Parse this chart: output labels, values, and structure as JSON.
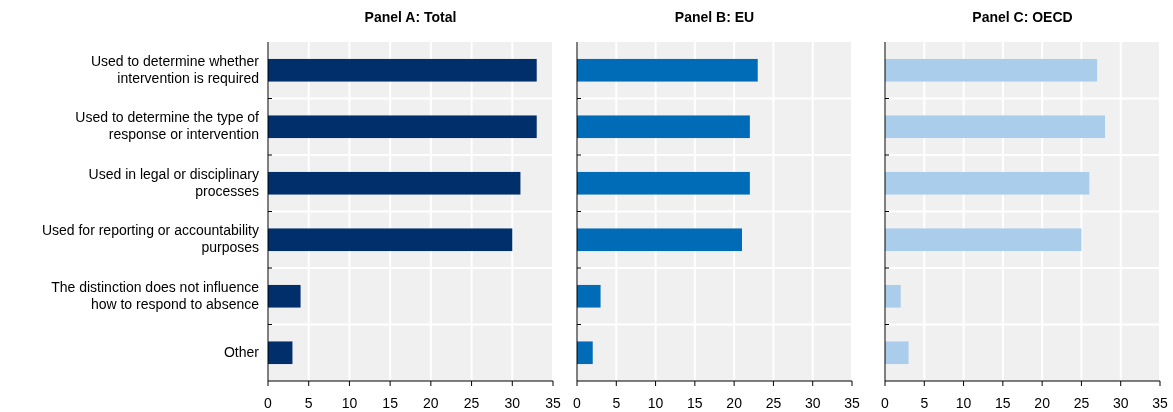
{
  "chart_data": [
    {
      "type": "bar",
      "orientation": "horizontal",
      "title": "Panel A: Total",
      "categories": [
        "Used to determine whether intervention is required",
        "Used to determine the type of response or intervention",
        "Used in legal or disciplinary processes",
        "Used for reporting or accountability purposes",
        "The distinction does not influence how to respond to absence",
        "Other"
      ],
      "values": [
        33,
        33,
        31,
        30,
        4,
        3
      ],
      "color": "#002f6c",
      "xlim": [
        0,
        35
      ],
      "xticks": [
        0,
        5,
        10,
        15,
        20,
        25,
        30,
        35
      ],
      "grid": true
    },
    {
      "type": "bar",
      "orientation": "horizontal",
      "title": "Panel B: EU",
      "categories": [
        null,
        null,
        null,
        null,
        null,
        null
      ],
      "values": [
        23,
        22,
        22,
        21,
        3,
        2
      ],
      "color": "#006bb6",
      "xlim": [
        0,
        35
      ],
      "xticks": [
        0,
        5,
        10,
        15,
        20,
        25,
        30,
        35
      ],
      "grid": true,
      "tick_labels": "x"
    },
    {
      "type": "bar",
      "orientation": "horizontal",
      "title": "Panel C: OECD",
      "categories": [
        null,
        null,
        null,
        null,
        null,
        null
      ],
      "values": [
        27,
        28,
        26,
        25,
        2,
        3
      ],
      "color": "#abcdec",
      "xlim": [
        0,
        35
      ],
      "xticks": [
        0,
        5,
        10,
        15,
        20,
        25,
        30,
        35
      ],
      "grid": true,
      "tick_labels": "x"
    }
  ]
}
